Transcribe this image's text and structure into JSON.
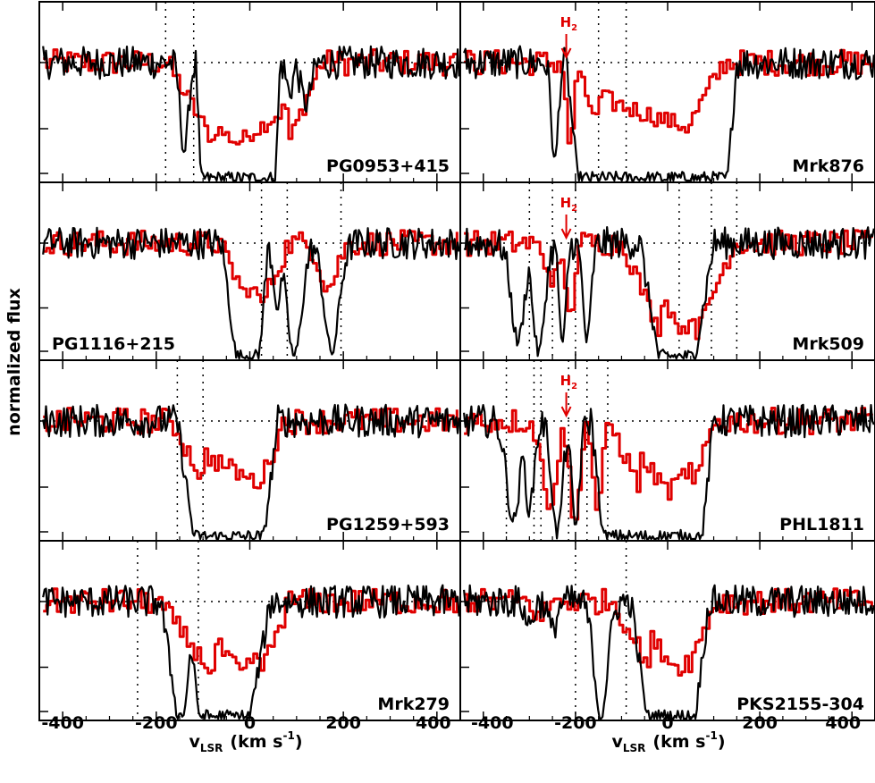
{
  "chart_data": {
    "type": "line",
    "ylabel": "normalized flux",
    "xlabel_main": "v",
    "xlabel_sub": "LSR",
    "xlabel_units_open": "(km s",
    "xlabel_units_exp": "-1",
    "xlabel_units_close": ")",
    "xlim": [
      -450,
      450
    ],
    "xticks_left": [
      "-400",
      "-200",
      "0",
      "200",
      "400"
    ],
    "xticks_right": [
      "-400",
      "-200",
      "0",
      "200",
      "400"
    ],
    "xtick_values": [
      -400,
      -200,
      0,
      200,
      400
    ],
    "continuum_level": 1.0,
    "series_colors": {
      "black": "#000000",
      "red": "#e00000"
    },
    "annotation_text": "H",
    "annotation_sub": "2",
    "panels": [
      {
        "name": "PG0953+415",
        "label_pos": "bottom-right",
        "vlines": [
          -180,
          -120
        ],
        "h2_marker": null,
        "black": {
          "edges": [
            -115,
            -105,
            55,
            65
          ],
          "min_depth": 0.98,
          "extras": [
            [
              -140,
              0.75,
              12
            ],
            [
              120,
              0.35,
              15
            ],
            [
              85,
              0.25,
              10
            ]
          ]
        },
        "red": {
          "edges": [
            -180,
            -80,
            80,
            150
          ],
          "min_depth": 0.68,
          "center": -30,
          "extras": []
        }
      },
      {
        "name": "Mrk876",
        "label_pos": "bottom-right",
        "vlines": [
          -150,
          -90
        ],
        "h2_marker": -220,
        "black": {
          "edges": [
            -220,
            -195,
            130,
            150
          ],
          "min_depth": 0.98,
          "extras": [
            [
              -245,
              0.85,
              10
            ],
            [
              -40,
              0.12,
              12
            ]
          ]
        },
        "red": {
          "edges": [
            -210,
            -150,
            40,
            120
          ],
          "min_depth": 0.55,
          "center": 40,
          "extras": [
            [
              -215,
              0.75,
              10
            ]
          ]
        }
      },
      {
        "name": "PG1116+215",
        "label_pos": "bottom-left",
        "vlines": [
          25,
          80,
          195
        ],
        "h2_marker": null,
        "black": {
          "edges": [
            -60,
            -30,
            20,
            40
          ],
          "min_depth": 0.98,
          "extras": [
            [
              95,
              0.98,
              22
            ],
            [
              175,
              0.95,
              22
            ],
            [
              60,
              0.55,
              12
            ]
          ]
        },
        "red": {
          "edges": [
            -70,
            0,
            20,
            80
          ],
          "min_depth": 0.55,
          "center": 20,
          "extras": [
            [
              165,
              0.38,
              25
            ]
          ]
        }
      },
      {
        "name": "Mrk509",
        "label_pos": "bottom-right",
        "vlines": [
          -300,
          -250,
          -200,
          25,
          95,
          150
        ],
        "h2_marker": -220,
        "black": {
          "edges": [
            -60,
            -20,
            60,
            100
          ],
          "min_depth": 0.98,
          "extras": [
            [
              -325,
              0.85,
              20
            ],
            [
              -280,
              0.95,
              18
            ],
            [
              -228,
              0.9,
              10
            ],
            [
              -175,
              0.85,
              12
            ]
          ]
        },
        "red": {
          "edges": [
            -100,
            -20,
            60,
            140
          ],
          "min_depth": 0.78,
          "center": 30,
          "extras": [
            [
              -250,
              0.3,
              25
            ],
            [
              -215,
              0.65,
              12
            ]
          ]
        }
      },
      {
        "name": "PG1259+593",
        "label_pos": "bottom-right",
        "vlines": [
          -155,
          -100
        ],
        "h2_marker": null,
        "black": {
          "edges": [
            -155,
            -120,
            30,
            60
          ],
          "min_depth": 0.98,
          "extras": []
        },
        "red": {
          "edges": [
            -170,
            -100,
            20,
            70
          ],
          "min_depth": 0.52,
          "center": 10,
          "extras": []
        }
      },
      {
        "name": "PHL1811",
        "label_pos": "bottom-right",
        "vlines": [
          -350,
          -290,
          -275,
          -215,
          -175,
          -130
        ],
        "h2_marker": -220,
        "black": {
          "edges": [
            -165,
            -140,
            75,
            100
          ],
          "min_depth": 0.98,
          "extras": [
            [
              -335,
              0.85,
              20
            ],
            [
              -300,
              0.75,
              14
            ],
            [
              -240,
              0.95,
              16
            ],
            [
              -200,
              0.9,
              12
            ]
          ]
        },
        "red": {
          "edges": [
            -130,
            -60,
            50,
            100
          ],
          "min_depth": 0.6,
          "center": 0,
          "extras": [
            [
              -260,
              0.7,
              22
            ],
            [
              -205,
              0.9,
              14
            ],
            [
              -155,
              0.75,
              14
            ]
          ]
        }
      },
      {
        "name": "Mrk279",
        "label_pos": "bottom-right",
        "vlines": [
          -240,
          -110
        ],
        "h2_marker": null,
        "black": {
          "edges": [
            -190,
            -155,
            0,
            45
          ],
          "min_depth": 0.98,
          "extras": []
        },
        "red": {
          "edges": [
            -200,
            -80,
            20,
            80
          ],
          "min_depth": 0.62,
          "center": -20,
          "extras": []
        },
        "black_bump": [
          -125,
          0.55,
          10
        ]
      },
      {
        "name": "PKS2155-304",
        "label_pos": "bottom-right",
        "vlines": [
          -200,
          -90
        ],
        "h2_marker": null,
        "black": {
          "edges": [
            -80,
            -45,
            60,
            90
          ],
          "min_depth": 0.98,
          "extras": [
            [
              -145,
              0.98,
              20
            ],
            [
              -300,
              0.2,
              12
            ],
            [
              -250,
              0.25,
              12
            ]
          ]
        },
        "red": {
          "edges": [
            -120,
            -40,
            40,
            100
          ],
          "min_depth": 0.58,
          "center": 20,
          "extras": [
            [
              -280,
              0.15,
              15
            ]
          ]
        }
      }
    ]
  }
}
